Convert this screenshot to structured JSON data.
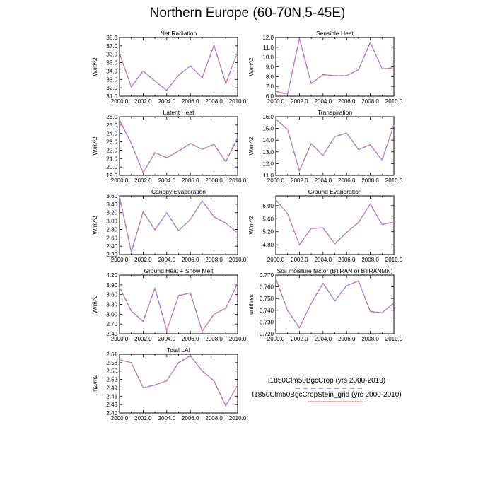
{
  "title": "Northern Europe (60-70N,5-45E)",
  "colors": {
    "series1": "#7f7fff",
    "series2": "#ff7f7f",
    "overlap": "#7a007a"
  },
  "legend": {
    "entries": [
      "I1850Clm50BgcCrop (yrs 2000-2010)",
      "I1850Clm50BgcCropStein_grid (yrs 2000-2010)"
    ]
  },
  "chart_data": [
    {
      "type": "line",
      "title": "Net Radiation",
      "ylabel": "W/m^2",
      "x": [
        2000,
        2001,
        2002,
        2003,
        2004,
        2005,
        2006,
        2007,
        2008,
        2009,
        2010
      ],
      "xlim": [
        2000,
        2010
      ],
      "xticks": [
        "2000.0",
        "2002.0",
        "2004.0",
        "2006.0",
        "2008.0",
        "2010.0"
      ],
      "ylim": [
        31,
        38
      ],
      "yticks": [
        "31.0",
        "32.0",
        "33.0",
        "34.0",
        "35.0",
        "36.0",
        "37.0",
        "38.0"
      ],
      "series": [
        {
          "name": "I1850Clm50BgcCrop (yrs 2000-2010)",
          "values": [
            36.1,
            32.1,
            34.0,
            32.8,
            31.7,
            33.5,
            34.6,
            33.2,
            37.1,
            32.5,
            36.3
          ]
        },
        {
          "name": "I1850Clm50BgcCropStein_grid (yrs 2000-2010)",
          "values": [
            36.1,
            32.1,
            34.0,
            32.8,
            31.7,
            33.5,
            34.6,
            33.2,
            37.1,
            32.5,
            36.3
          ]
        }
      ]
    },
    {
      "type": "line",
      "title": "Sensible Heat",
      "ylabel": "W/m^2",
      "x": [
        2000,
        2001,
        2002,
        2003,
        2004,
        2005,
        2006,
        2007,
        2008,
        2009,
        2010
      ],
      "xlim": [
        2000,
        2010
      ],
      "xticks": [
        "2000.0",
        "2002.0",
        "2004.0",
        "2006.0",
        "2008.0",
        "2010.0"
      ],
      "ylim": [
        6,
        12
      ],
      "yticks": [
        "6.0",
        "7.0",
        "8.0",
        "9.0",
        "10.0",
        "11.0",
        "12.0"
      ],
      "series": [
        {
          "name": "I1850Clm50BgcCrop (yrs 2000-2010)",
          "values": [
            6.5,
            6.2,
            11.9,
            7.3,
            8.2,
            8.1,
            8.1,
            8.7,
            11.5,
            8.8,
            8.9
          ]
        },
        {
          "name": "I1850Clm50BgcCropStein_grid (yrs 2000-2010)",
          "values": [
            6.5,
            6.2,
            11.9,
            7.3,
            8.2,
            8.1,
            8.1,
            8.7,
            11.5,
            8.8,
            8.9
          ]
        }
      ]
    },
    {
      "type": "line",
      "title": "Latent Heat",
      "ylabel": "W/m^2",
      "x": [
        2000,
        2001,
        2002,
        2003,
        2004,
        2005,
        2006,
        2007,
        2008,
        2009,
        2010
      ],
      "xlim": [
        2000,
        2010
      ],
      "xticks": [
        "2000.0",
        "2002.0",
        "2004.0",
        "2006.0",
        "2008.0",
        "2010.0"
      ],
      "ylim": [
        19,
        26
      ],
      "yticks": [
        "19.0",
        "20.0",
        "21.0",
        "22.0",
        "23.0",
        "24.0",
        "25.0",
        "26.0"
      ],
      "series": [
        {
          "name": "I1850Clm50BgcCrop (yrs 2000-2010)",
          "values": [
            25.6,
            22.8,
            19.3,
            21.7,
            21.1,
            21.9,
            22.8,
            22.1,
            22.7,
            20.6,
            23.5
          ]
        },
        {
          "name": "I1850Clm50BgcCropStein_grid (yrs 2000-2010)",
          "values": [
            25.6,
            22.8,
            19.3,
            21.7,
            21.1,
            21.9,
            22.8,
            22.1,
            22.7,
            20.6,
            23.5
          ]
        }
      ]
    },
    {
      "type": "line",
      "title": "Transpiration",
      "ylabel": "W/m^2",
      "x": [
        2000,
        2001,
        2002,
        2003,
        2004,
        2005,
        2006,
        2007,
        2008,
        2009,
        2010
      ],
      "xlim": [
        2000,
        2010
      ],
      "xticks": [
        "2000.0",
        "2002.0",
        "2004.0",
        "2006.0",
        "2008.0",
        "2010.0"
      ],
      "ylim": [
        11,
        16
      ],
      "yticks": [
        "11.0",
        "12.0",
        "13.0",
        "14.0",
        "15.0",
        "16.0"
      ],
      "series": [
        {
          "name": "I1850Clm50BgcCrop (yrs 2000-2010)",
          "values": [
            15.8,
            14.9,
            11.4,
            13.7,
            12.7,
            14.3,
            14.6,
            13.2,
            13.6,
            12.3,
            15.3
          ]
        },
        {
          "name": "I1850Clm50BgcCropStein_grid (yrs 2000-2010)",
          "values": [
            15.8,
            14.9,
            11.4,
            13.7,
            12.7,
            14.3,
            14.6,
            13.2,
            13.6,
            12.3,
            15.3
          ]
        }
      ]
    },
    {
      "type": "line",
      "title": "Canopy Evaporation",
      "ylabel": "W/m^2",
      "x": [
        2000,
        2001,
        2002,
        2003,
        2004,
        2005,
        2006,
        2007,
        2008,
        2009,
        2010
      ],
      "xlim": [
        2000,
        2010
      ],
      "xticks": [
        "2000.0",
        "2002.0",
        "2004.0",
        "2006.0",
        "2008.0",
        "2010.0"
      ],
      "ylim": [
        2.2,
        3.6
      ],
      "yticks": [
        "2.20",
        "2.40",
        "2.60",
        "2.80",
        "3.00",
        "3.20",
        "3.40",
        "3.60"
      ],
      "series": [
        {
          "name": "I1850Clm50BgcCrop (yrs 2000-2010)",
          "values": [
            3.58,
            2.26,
            3.22,
            2.79,
            3.2,
            2.77,
            3.04,
            3.48,
            3.1,
            2.95,
            2.72
          ]
        },
        {
          "name": "I1850Clm50BgcCropStein_grid (yrs 2000-2010)",
          "values": [
            3.58,
            2.26,
            3.22,
            2.79,
            3.2,
            2.77,
            3.04,
            3.48,
            3.1,
            2.95,
            2.72
          ]
        }
      ]
    },
    {
      "type": "line",
      "title": "Ground Evaporation",
      "ylabel": "W/m^2",
      "x": [
        2000,
        2001,
        2002,
        2003,
        2004,
        2005,
        2006,
        2007,
        2008,
        2009,
        2010
      ],
      "xlim": [
        2000,
        2010
      ],
      "xticks": [
        "2000.0",
        "2002.0",
        "2004.0",
        "2006.0",
        "2008.0",
        "2010.0"
      ],
      "ylim": [
        4.5,
        6.3
      ],
      "yticks": [
        "4.80",
        "5.20",
        "5.60",
        "6.00"
      ],
      "ytickvalues": [
        4.8,
        5.2,
        5.6,
        6.0
      ],
      "series": [
        {
          "name": "I1850Clm50BgcCrop (yrs 2000-2010)",
          "values": [
            6.18,
            5.75,
            4.8,
            5.3,
            5.32,
            4.83,
            5.18,
            5.48,
            6.05,
            5.42,
            5.5
          ]
        },
        {
          "name": "I1850Clm50BgcCropStein_grid (yrs 2000-2010)",
          "values": [
            6.18,
            5.75,
            4.8,
            5.3,
            5.32,
            4.83,
            5.18,
            5.48,
            6.05,
            5.42,
            5.5
          ]
        }
      ]
    },
    {
      "type": "line",
      "title": "Ground Heat + Snow Melt",
      "ylabel": "W/m^2",
      "x": [
        2000,
        2001,
        2002,
        2003,
        2004,
        2005,
        2006,
        2007,
        2008,
        2009,
        2010
      ],
      "xlim": [
        2000,
        2010
      ],
      "xticks": [
        "2000.0",
        "2002.0",
        "2004.0",
        "2006.0",
        "2008.0",
        "2010.0"
      ],
      "ylim": [
        2.4,
        4.2
      ],
      "yticks": [
        "2.40",
        "2.70",
        "3.00",
        "3.30",
        "3.60",
        "3.90",
        "4.20"
      ],
      "series": [
        {
          "name": "I1850Clm50BgcCrop (yrs 2000-2010)",
          "values": [
            3.82,
            3.1,
            2.78,
            3.8,
            2.5,
            3.57,
            3.65,
            2.48,
            3.0,
            3.18,
            3.95
          ]
        },
        {
          "name": "I1850Clm50BgcCropStein_grid (yrs 2000-2010)",
          "values": [
            3.82,
            3.1,
            2.78,
            3.8,
            2.5,
            3.57,
            3.65,
            2.48,
            3.0,
            3.18,
            3.95
          ]
        }
      ]
    },
    {
      "type": "line",
      "title": "Soil moisture factor (BTRAN or BTRANMN)",
      "ylabel": "unitless",
      "x": [
        2000,
        2001,
        2002,
        2003,
        2004,
        2005,
        2006,
        2007,
        2008,
        2009,
        2010
      ],
      "xlim": [
        2000,
        2010
      ],
      "xticks": [
        "2000.0",
        "2002.0",
        "2004.0",
        "2006.0",
        "2008.0",
        "2010.0"
      ],
      "ylim": [
        0.72,
        0.77
      ],
      "yticks": [
        "0.720",
        "0.730",
        "0.740",
        "0.750",
        "0.760",
        "0.770"
      ],
      "series": [
        {
          "name": "I1850Clm50BgcCrop (yrs 2000-2010)",
          "values": [
            0.767,
            0.74,
            0.725,
            0.746,
            0.763,
            0.748,
            0.761,
            0.765,
            0.739,
            0.738,
            0.746
          ]
        },
        {
          "name": "I1850Clm50BgcCropStein_grid (yrs 2000-2010)",
          "values": [
            0.767,
            0.74,
            0.725,
            0.746,
            0.763,
            0.748,
            0.761,
            0.765,
            0.739,
            0.738,
            0.746
          ]
        }
      ]
    },
    {
      "type": "line",
      "title": "Total LAI",
      "ylabel": "m2/m2",
      "x": [
        2000,
        2001,
        2002,
        2003,
        2004,
        2005,
        2006,
        2007,
        2008,
        2009,
        2010
      ],
      "xlim": [
        2000,
        2010
      ],
      "xticks": [
        "2000.0",
        "2002.0",
        "2004.0",
        "2006.0",
        "2008.0",
        "2010.0"
      ],
      "ylim": [
        2.4,
        2.61
      ],
      "yticks": [
        "2.40",
        "2.43",
        "2.46",
        "2.49",
        "2.52",
        "2.55",
        "2.58",
        "2.61"
      ],
      "series": [
        {
          "name": "I1850Clm50BgcCrop (yrs 2000-2010)",
          "values": [
            2.59,
            2.58,
            2.49,
            2.5,
            2.515,
            2.58,
            2.605,
            2.55,
            2.515,
            2.425,
            2.5
          ]
        },
        {
          "name": "I1850Clm50BgcCropStein_grid (yrs 2000-2010)",
          "values": [
            2.59,
            2.58,
            2.49,
            2.5,
            2.515,
            2.58,
            2.605,
            2.55,
            2.515,
            2.425,
            2.5
          ]
        }
      ]
    }
  ]
}
